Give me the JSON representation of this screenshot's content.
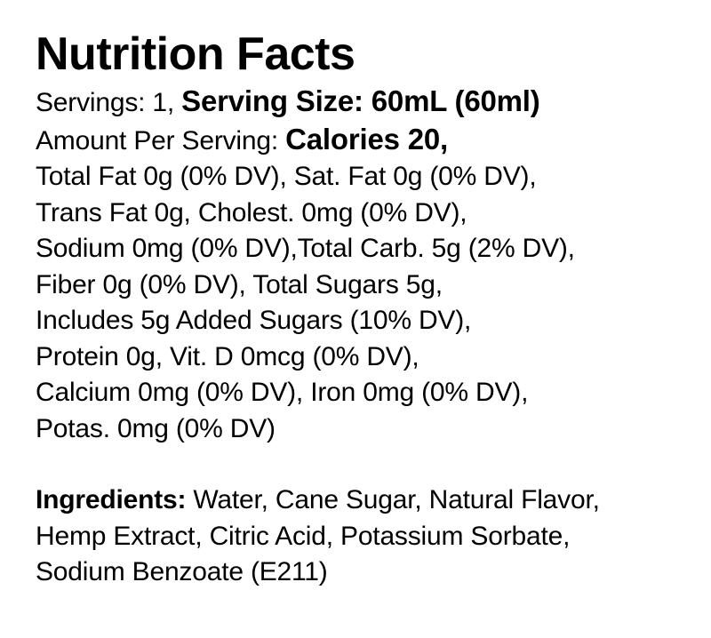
{
  "title": "Nutrition Facts",
  "servings": {
    "prefix": "Servings: 1, ",
    "size_label": "Serving Size: 60mL (60ml)"
  },
  "amount": {
    "prefix": "Amount Per Serving: ",
    "calories": "Calories 20,"
  },
  "nutrient_lines": [
    "Total Fat 0g (0% DV), Sat. Fat 0g (0% DV),",
    "Trans Fat 0g, Cholest. 0mg (0% DV),",
    "Sodium 0mg (0% DV),Total Carb. 5g (2% DV),",
    "Fiber 0g (0% DV), Total Sugars 5g,",
    "Includes 5g Added Sugars (10% DV),",
    "Protein 0g, Vit. D 0mcg (0% DV),",
    "Calcium 0mg (0% DV), Iron 0mg (0% DV),",
    "Potas. 0mg (0% DV)"
  ],
  "ingredients": {
    "label": "Ingredients:",
    "lines": [
      " Water, Cane Sugar, Natural Flavor,",
      "Hemp Extract, Citric Acid, Potassium Sorbate,",
      "Sodium Benzoate (E211)"
    ]
  }
}
